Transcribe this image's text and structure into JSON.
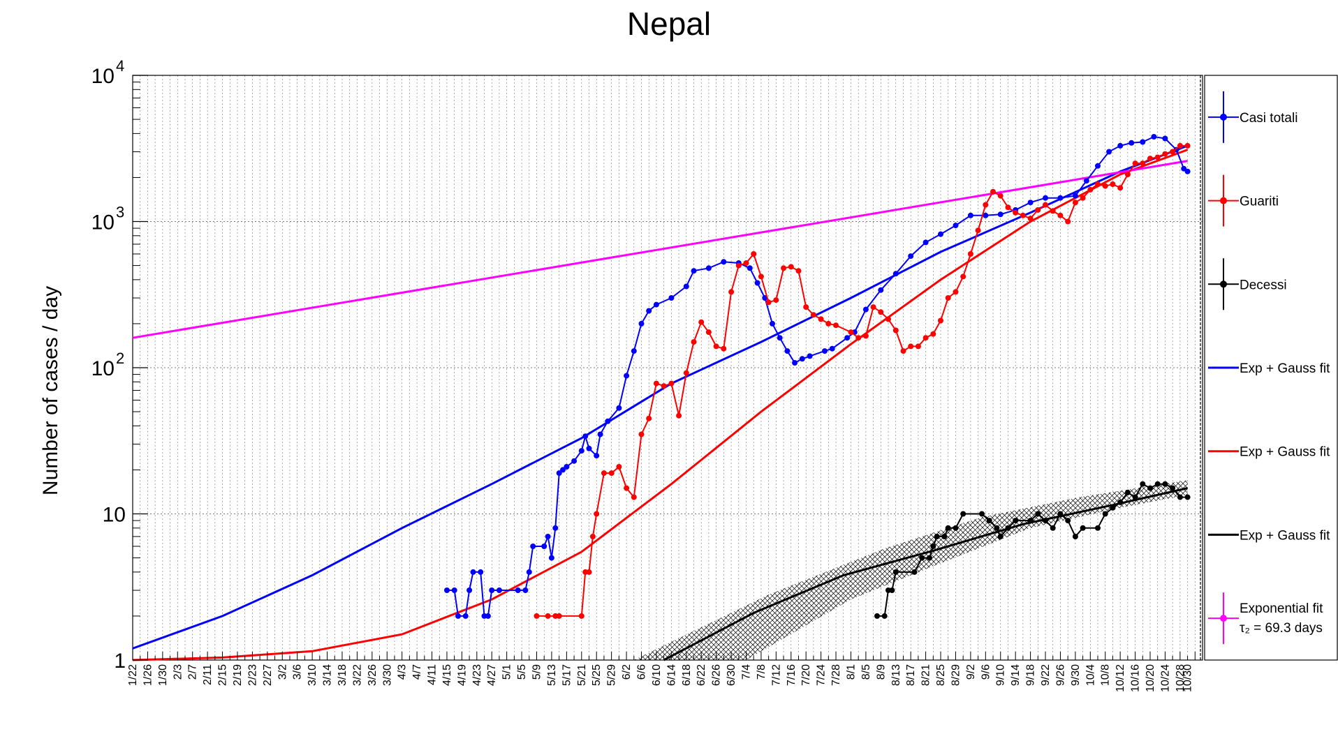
{
  "chart_data": {
    "type": "line",
    "title": "Nepal",
    "ylabel": "Number of cases / day",
    "xlabel": "",
    "y_scale": "log",
    "ylim": [
      1,
      10000
    ],
    "grid": true,
    "legend_position": "right",
    "y_tick_labels": [
      {
        "value": 1,
        "base": "1",
        "exp": ""
      },
      {
        "value": 10,
        "base": "10",
        "exp": ""
      },
      {
        "value": 100,
        "base": "10",
        "exp": "2"
      },
      {
        "value": 1000,
        "base": "10",
        "exp": "3"
      },
      {
        "value": 10000,
        "base": "10",
        "exp": "4"
      }
    ],
    "x_tick_labels": [
      "1/22",
      "1/26",
      "1/30",
      "2/3",
      "2/7",
      "2/11",
      "2/15",
      "2/19",
      "2/23",
      "2/27",
      "3/2",
      "3/6",
      "3/10",
      "3/14",
      "3/18",
      "3/22",
      "3/26",
      "3/30",
      "4/3",
      "4/7",
      "4/11",
      "4/15",
      "4/19",
      "4/23",
      "4/27",
      "5/1",
      "5/5",
      "5/9",
      "5/13",
      "5/17",
      "5/21",
      "5/25",
      "5/29",
      "6/2",
      "6/6",
      "6/10",
      "6/14",
      "6/18",
      "6/22",
      "6/26",
      "6/30",
      "7/4",
      "7/8",
      "7/12",
      "7/16",
      "7/20",
      "7/24",
      "7/28",
      "8/1",
      "8/5",
      "8/9",
      "8/13",
      "8/17",
      "8/21",
      "8/25",
      "8/29",
      "9/2",
      "9/6",
      "9/10",
      "9/14",
      "9/18",
      "9/22",
      "9/26",
      "9/30",
      "10/4",
      "10/8",
      "10/12",
      "10/16",
      "10/20",
      "10/24",
      "10/28",
      "10/30"
    ],
    "colors": {
      "casi": "#0000ff",
      "guariti": "#ff0000",
      "decessi": "#000000",
      "expfit": "#ff00ff"
    },
    "legend": [
      {
        "label": "Casi totali",
        "label2": "",
        "color": "#0000ff",
        "style": "marker"
      },
      {
        "label": "Guariti",
        "label2": "",
        "color": "#ff0000",
        "style": "marker"
      },
      {
        "label": "Decessi",
        "label2": "",
        "color": "#000000",
        "style": "marker"
      },
      {
        "label": "Exp + Gauss fit",
        "label2": "",
        "color": "#0000ff",
        "style": "line"
      },
      {
        "label": "Exp + Gauss fit",
        "label2": "",
        "color": "#ff0000",
        "style": "line"
      },
      {
        "label": "Exp + Gauss fit",
        "label2": "",
        "color": "#000000",
        "style": "line"
      },
      {
        "label": "Exponential fit",
        "label2": "τ₂ = 69.3 days",
        "color": "#ff00ff",
        "style": "marker"
      }
    ],
    "series": [
      {
        "name": "Casi totali",
        "color": "#0000ff",
        "points": [
          [
            "4/15",
            3
          ],
          [
            "4/17",
            3
          ],
          [
            "4/18",
            2
          ],
          [
            "4/20",
            2
          ],
          [
            "4/21",
            3
          ],
          [
            "4/22",
            4
          ],
          [
            "4/24",
            4
          ],
          [
            "4/25",
            2
          ],
          [
            "4/26",
            2
          ],
          [
            "4/27",
            3
          ],
          [
            "4/29",
            3
          ],
          [
            "5/4",
            3
          ],
          [
            "5/6",
            3
          ],
          [
            "5/7",
            4
          ],
          [
            "5/8",
            6
          ],
          [
            "5/11",
            6
          ],
          [
            "5/12",
            7
          ],
          [
            "5/13",
            5
          ],
          [
            "5/14",
            8
          ],
          [
            "5/15",
            19
          ],
          [
            "5/16",
            20
          ],
          [
            "5/17",
            21
          ],
          [
            "5/19",
            23
          ],
          [
            "5/21",
            27
          ],
          [
            "5/22",
            34
          ],
          [
            "5/23",
            28
          ],
          [
            "5/25",
            25
          ],
          [
            "5/26",
            35
          ],
          [
            "5/28",
            43
          ],
          [
            "5/31",
            53
          ],
          [
            "6/2",
            88
          ],
          [
            "6/4",
            130
          ],
          [
            "6/6",
            200
          ],
          [
            "6/8",
            245
          ],
          [
            "6/10",
            270
          ],
          [
            "6/14",
            300
          ],
          [
            "6/18",
            360
          ],
          [
            "6/20",
            460
          ],
          [
            "6/24",
            480
          ],
          [
            "6/28",
            530
          ],
          [
            "7/2",
            520
          ],
          [
            "7/5",
            480
          ],
          [
            "7/7",
            380
          ],
          [
            "7/9",
            300
          ],
          [
            "7/11",
            200
          ],
          [
            "7/13",
            160
          ],
          [
            "7/15",
            130
          ],
          [
            "7/17",
            108
          ],
          [
            "7/19",
            115
          ],
          [
            "7/21",
            120
          ],
          [
            "7/25",
            130
          ],
          [
            "7/27",
            135
          ],
          [
            "7/31",
            160
          ],
          [
            "8/2",
            175
          ],
          [
            "8/5",
            250
          ],
          [
            "8/9",
            340
          ],
          [
            "8/13",
            440
          ],
          [
            "8/17",
            580
          ],
          [
            "8/21",
            720
          ],
          [
            "8/25",
            820
          ],
          [
            "8/29",
            940
          ],
          [
            "9/2",
            1100
          ],
          [
            "9/6",
            1100
          ],
          [
            "9/10",
            1120
          ],
          [
            "9/14",
            1200
          ],
          [
            "9/18",
            1350
          ],
          [
            "9/22",
            1450
          ],
          [
            "9/26",
            1450
          ],
          [
            "9/30",
            1500
          ],
          [
            "10/3",
            1900
          ],
          [
            "10/6",
            2400
          ],
          [
            "10/9",
            3000
          ],
          [
            "10/12",
            3300
          ],
          [
            "10/15",
            3450
          ],
          [
            "10/18",
            3500
          ],
          [
            "10/21",
            3800
          ],
          [
            "10/24",
            3700
          ],
          [
            "10/27",
            3100
          ],
          [
            "10/29",
            2300
          ],
          [
            "10/30",
            2200
          ]
        ]
      },
      {
        "name": "Guariti",
        "color": "#ff0000",
        "points": [
          [
            "5/9",
            2
          ],
          [
            "5/12",
            2
          ],
          [
            "5/14",
            2
          ],
          [
            "5/15",
            2
          ],
          [
            "5/21",
            2
          ],
          [
            "5/22",
            4
          ],
          [
            "5/23",
            4
          ],
          [
            "5/24",
            7
          ],
          [
            "5/25",
            10
          ],
          [
            "5/27",
            19
          ],
          [
            "5/29",
            19
          ],
          [
            "5/31",
            21
          ],
          [
            "6/2",
            15
          ],
          [
            "6/4",
            13
          ],
          [
            "6/6",
            35
          ],
          [
            "6/8",
            45
          ],
          [
            "6/10",
            78
          ],
          [
            "6/12",
            75
          ],
          [
            "6/14",
            78
          ],
          [
            "6/16",
            47
          ],
          [
            "6/18",
            92
          ],
          [
            "6/20",
            150
          ],
          [
            "6/22",
            205
          ],
          [
            "6/24",
            175
          ],
          [
            "6/26",
            140
          ],
          [
            "6/28",
            135
          ],
          [
            "6/30",
            330
          ],
          [
            "7/2",
            500
          ],
          [
            "7/4",
            520
          ],
          [
            "7/6",
            600
          ],
          [
            "7/8",
            420
          ],
          [
            "7/10",
            280
          ],
          [
            "7/12",
            290
          ],
          [
            "7/14",
            480
          ],
          [
            "7/16",
            490
          ],
          [
            "7/18",
            460
          ],
          [
            "7/20",
            260
          ],
          [
            "7/22",
            230
          ],
          [
            "7/24",
            215
          ],
          [
            "7/26",
            200
          ],
          [
            "7/28",
            195
          ],
          [
            "8/1",
            175
          ],
          [
            "8/3",
            160
          ],
          [
            "8/5",
            165
          ],
          [
            "8/7",
            260
          ],
          [
            "8/9",
            240
          ],
          [
            "8/11",
            215
          ],
          [
            "8/13",
            180
          ],
          [
            "8/15",
            130
          ],
          [
            "8/17",
            140
          ],
          [
            "8/19",
            140
          ],
          [
            "8/21",
            160
          ],
          [
            "8/23",
            170
          ],
          [
            "8/25",
            210
          ],
          [
            "8/27",
            300
          ],
          [
            "8/29",
            330
          ],
          [
            "8/31",
            420
          ],
          [
            "9/2",
            600
          ],
          [
            "9/4",
            870
          ],
          [
            "9/6",
            1300
          ],
          [
            "9/8",
            1600
          ],
          [
            "9/10",
            1500
          ],
          [
            "9/12",
            1250
          ],
          [
            "9/14",
            1150
          ],
          [
            "9/16",
            1100
          ],
          [
            "9/18",
            1050
          ],
          [
            "9/20",
            1200
          ],
          [
            "9/22",
            1300
          ],
          [
            "9/24",
            1180
          ],
          [
            "9/26",
            1100
          ],
          [
            "9/28",
            1000
          ],
          [
            "9/30",
            1350
          ],
          [
            "10/2",
            1450
          ],
          [
            "10/4",
            1650
          ],
          [
            "10/6",
            1800
          ],
          [
            "10/8",
            1750
          ],
          [
            "10/10",
            1800
          ],
          [
            "10/12",
            1700
          ],
          [
            "10/14",
            2100
          ],
          [
            "10/16",
            2500
          ],
          [
            "10/18",
            2500
          ],
          [
            "10/20",
            2700
          ],
          [
            "10/22",
            2750
          ],
          [
            "10/24",
            2900
          ],
          [
            "10/26",
            3000
          ],
          [
            "10/28",
            3300
          ],
          [
            "10/30",
            3300
          ]
        ]
      },
      {
        "name": "Decessi",
        "color": "#000000",
        "points": [
          [
            "8/8",
            2
          ],
          [
            "8/10",
            2
          ],
          [
            "8/11",
            3
          ],
          [
            "8/12",
            3
          ],
          [
            "8/13",
            4
          ],
          [
            "8/18",
            4
          ],
          [
            "8/20",
            5
          ],
          [
            "8/22",
            5
          ],
          [
            "8/23",
            6
          ],
          [
            "8/24",
            7
          ],
          [
            "8/26",
            7
          ],
          [
            "8/27",
            8
          ],
          [
            "8/29",
            8
          ],
          [
            "8/31",
            10
          ],
          [
            "9/5",
            10
          ],
          [
            "9/7",
            9
          ],
          [
            "9/9",
            8
          ],
          [
            "9/10",
            7
          ],
          [
            "9/12",
            8
          ],
          [
            "9/14",
            9
          ],
          [
            "9/18",
            9
          ],
          [
            "9/20",
            10
          ],
          [
            "9/22",
            9
          ],
          [
            "9/24",
            8
          ],
          [
            "9/26",
            10
          ],
          [
            "9/28",
            9
          ],
          [
            "9/30",
            7
          ],
          [
            "10/2",
            8
          ],
          [
            "10/6",
            8
          ],
          [
            "10/8",
            10
          ],
          [
            "10/10",
            11
          ],
          [
            "10/12",
            12
          ],
          [
            "10/14",
            14
          ],
          [
            "10/16",
            13
          ],
          [
            "10/18",
            16
          ],
          [
            "10/20",
            15
          ],
          [
            "10/22",
            16
          ],
          [
            "10/24",
            16
          ],
          [
            "10/26",
            15
          ],
          [
            "10/28",
            13
          ],
          [
            "10/30",
            13
          ]
        ]
      }
    ],
    "fits": [
      {
        "name": "Exp + Gauss fit",
        "color": "#0000ff",
        "points": [
          [
            "1/22",
            1.2
          ],
          [
            "2/15",
            2.0
          ],
          [
            "3/10",
            3.8
          ],
          [
            "4/3",
            8.0
          ],
          [
            "4/27",
            16
          ],
          [
            "5/21",
            33
          ],
          [
            "6/14",
            78
          ],
          [
            "7/8",
            150
          ],
          [
            "8/1",
            300
          ],
          [
            "8/25",
            620
          ],
          [
            "9/18",
            1150
          ],
          [
            "10/12",
            2200
          ],
          [
            "10/30",
            3300
          ]
        ]
      },
      {
        "name": "Exp + Gauss fit",
        "color": "#ff0000",
        "points": [
          [
            "1/22",
            1.0
          ],
          [
            "2/15",
            1.04
          ],
          [
            "3/10",
            1.15
          ],
          [
            "4/3",
            1.5
          ],
          [
            "4/27",
            2.6
          ],
          [
            "5/21",
            5.5
          ],
          [
            "6/14",
            16
          ],
          [
            "7/8",
            50
          ],
          [
            "8/1",
            145
          ],
          [
            "8/25",
            400
          ],
          [
            "9/18",
            1000
          ],
          [
            "10/12",
            2100
          ],
          [
            "10/30",
            3100
          ]
        ]
      },
      {
        "name": "Exp + Gauss fit",
        "color": "#000000",
        "points": [
          [
            "6/12",
            1.0
          ],
          [
            "7/6",
            2.1
          ],
          [
            "7/30",
            3.8
          ],
          [
            "8/23",
            5.6
          ],
          [
            "9/16",
            8.5
          ],
          [
            "10/10",
            11.5
          ],
          [
            "10/30",
            15
          ]
        ]
      },
      {
        "name": "Exponential fit",
        "color": "#ff00ff",
        "points": [
          [
            "1/22",
            160
          ],
          [
            "10/30",
            2600
          ]
        ]
      }
    ],
    "band_decessi": {
      "lower": [
        [
          "7/4",
          1
        ],
        [
          "8/1",
          2.6
        ],
        [
          "8/25",
          4.6
        ],
        [
          "9/18",
          8
        ],
        [
          "10/12",
          11
        ],
        [
          "10/30",
          13.5
        ]
      ],
      "upper": [
        [
          "6/4",
          1
        ],
        [
          "7/10",
          2.8
        ],
        [
          "8/10",
          5.8
        ],
        [
          "9/5",
          9.5
        ],
        [
          "10/1",
          13
        ],
        [
          "10/30",
          17
        ]
      ]
    }
  }
}
